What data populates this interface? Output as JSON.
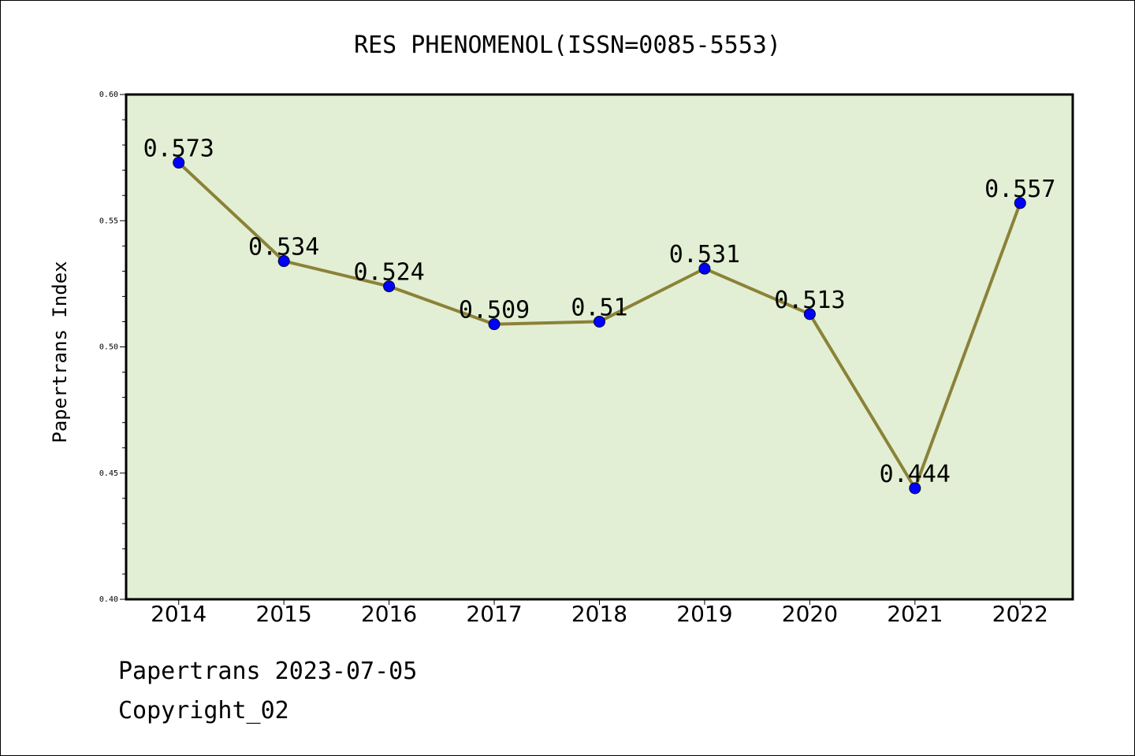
{
  "chart_data": {
    "type": "line",
    "title": "RES PHENOMENOL(ISSN=0085-5553)",
    "ylabel": "Papertrans Index",
    "xlabel": "",
    "categories": [
      "2014",
      "2015",
      "2016",
      "2017",
      "2018",
      "2019",
      "2020",
      "2021",
      "2022"
    ],
    "values": [
      0.573,
      0.534,
      0.524,
      0.509,
      0.51,
      0.531,
      0.513,
      0.444,
      0.557
    ],
    "value_labels": [
      "0.573",
      "0.534",
      "0.524",
      "0.509",
      "0.51",
      "0.531",
      "0.513",
      "0.444",
      "0.557"
    ],
    "ylim": [
      0.4,
      0.6
    ],
    "yticks": [
      "0.40",
      "0.45",
      "0.50",
      "0.55",
      "0.60"
    ],
    "grid": false,
    "legend": "none",
    "colors": {
      "plot_background": "#e2efd4",
      "line": "#8b8238",
      "marker": "#0000ff"
    }
  },
  "footer": {
    "line1": "Papertrans 2023-07-05",
    "line2": "Copyright_02"
  }
}
